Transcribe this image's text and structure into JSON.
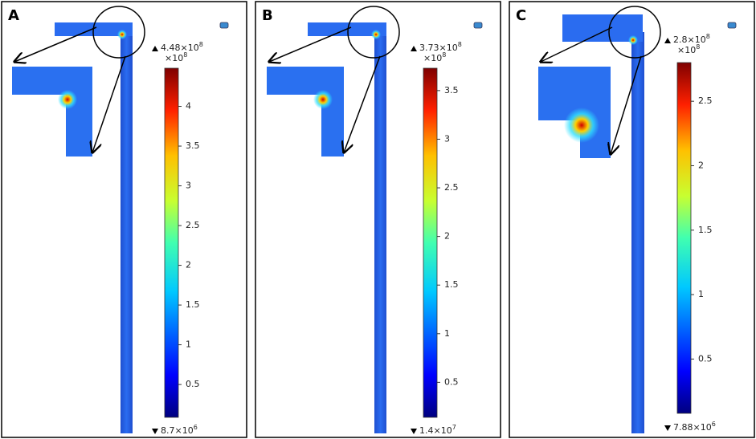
{
  "panels": [
    {
      "label": "A",
      "max_label": {
        "text": "4.48×10",
        "exp": "8"
      },
      "multiplier": {
        "text": "×10",
        "exp": "8"
      },
      "min_label": {
        "text": "8.7×10",
        "exp": "6"
      },
      "clim": [
        0.087,
        4.48
      ],
      "ticks": [
        0.5,
        1,
        1.5,
        2,
        2.5,
        3,
        3.5,
        4
      ]
    },
    {
      "label": "B",
      "max_label": {
        "text": "3.73×10",
        "exp": "8"
      },
      "multiplier": {
        "text": "×10",
        "exp": "8"
      },
      "min_label": {
        "text": "1.4×10",
        "exp": "7"
      },
      "clim": [
        0.14,
        3.73
      ],
      "ticks": [
        0.5,
        1,
        1.5,
        2,
        2.5,
        3,
        3.5
      ]
    },
    {
      "label": "C",
      "max_label": {
        "text": "2.8×10",
        "exp": "8"
      },
      "multiplier": {
        "text": "×10",
        "exp": "8"
      },
      "min_label": {
        "text": "7.88×10",
        "exp": "6"
      },
      "clim": [
        0.0788,
        2.8
      ],
      "ticks": [
        0.5,
        1,
        1.5,
        2,
        2.5
      ]
    }
  ]
}
